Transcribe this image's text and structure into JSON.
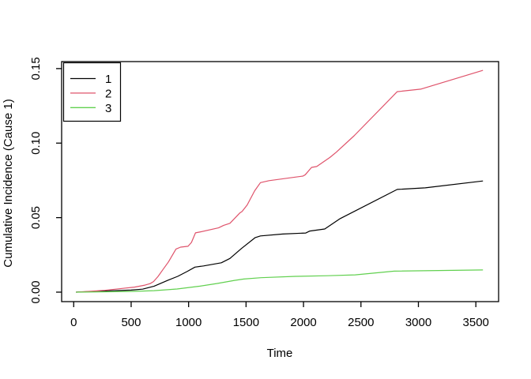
{
  "figure": {
    "background": "#ffffff",
    "axis_color": "#000000",
    "text_color": "#000000"
  },
  "chart_data": {
    "type": "line",
    "title": "",
    "xlabel": "Time",
    "ylabel": "Cumulative Incidence (Cause 1)",
    "xlim": [
      -105,
      3698
    ],
    "ylim": [
      -0.00636,
      0.1547
    ],
    "x_ticks": [
      0,
      500,
      1000,
      1500,
      2000,
      2500,
      3000,
      3500
    ],
    "x_tick_labels": [
      "0",
      "500",
      "1000",
      "1500",
      "2000",
      "2500",
      "3000",
      "3500"
    ],
    "y_ticks": [
      0,
      0.05,
      0.1,
      0.15
    ],
    "y_tick_labels": [
      "0.00",
      "0.05",
      "0.10",
      "0.15"
    ],
    "grid": false,
    "legend_position": "top-left",
    "series": [
      {
        "name": "1",
        "color": "#000000",
        "points": [
          [
            20,
            0
          ],
          [
            150,
            0.0004
          ],
          [
            300,
            0.0009
          ],
          [
            500,
            0.0014
          ],
          [
            600,
            0.002
          ],
          [
            700,
            0.004
          ],
          [
            820,
            0.008
          ],
          [
            905,
            0.0106
          ],
          [
            990,
            0.014
          ],
          [
            1055,
            0.0168
          ],
          [
            1130,
            0.0176
          ],
          [
            1285,
            0.0197
          ],
          [
            1360,
            0.0226
          ],
          [
            1460,
            0.0293
          ],
          [
            1580,
            0.0366
          ],
          [
            1625,
            0.0377
          ],
          [
            1820,
            0.039
          ],
          [
            2020,
            0.0397
          ],
          [
            2055,
            0.041
          ],
          [
            2185,
            0.0424
          ],
          [
            2320,
            0.0494
          ],
          [
            2816,
            0.0689
          ],
          [
            3060,
            0.07
          ],
          [
            3562,
            0.0746
          ]
        ]
      },
      {
        "name": "2",
        "color": "#DF536B",
        "points": [
          [
            20,
            0
          ],
          [
            150,
            0.0006
          ],
          [
            270,
            0.0012
          ],
          [
            390,
            0.0022
          ],
          [
            530,
            0.0034
          ],
          [
            620,
            0.0047
          ],
          [
            665,
            0.0057
          ],
          [
            695,
            0.0071
          ],
          [
            735,
            0.0106
          ],
          [
            775,
            0.015
          ],
          [
            825,
            0.0203
          ],
          [
            890,
            0.0289
          ],
          [
            930,
            0.0302
          ],
          [
            995,
            0.0308
          ],
          [
            1025,
            0.0334
          ],
          [
            1060,
            0.0398
          ],
          [
            1105,
            0.0405
          ],
          [
            1260,
            0.0431
          ],
          [
            1305,
            0.0448
          ],
          [
            1360,
            0.0462
          ],
          [
            1445,
            0.0531
          ],
          [
            1465,
            0.0541
          ],
          [
            1510,
            0.0585
          ],
          [
            1575,
            0.068
          ],
          [
            1625,
            0.0735
          ],
          [
            1700,
            0.0748
          ],
          [
            1995,
            0.0779
          ],
          [
            2015,
            0.0788
          ],
          [
            2070,
            0.0837
          ],
          [
            2115,
            0.0843
          ],
          [
            2230,
            0.0904
          ],
          [
            2285,
            0.0939
          ],
          [
            2440,
            0.1049
          ],
          [
            2816,
            0.1345
          ],
          [
            3020,
            0.1362
          ],
          [
            3562,
            0.1488
          ]
        ]
      },
      {
        "name": "3",
        "color": "#61D04F",
        "points": [
          [
            20,
            0
          ],
          [
            250,
            0.0002
          ],
          [
            500,
            0.0005
          ],
          [
            700,
            0.001
          ],
          [
            900,
            0.0021
          ],
          [
            1100,
            0.004
          ],
          [
            1250,
            0.0058
          ],
          [
            1400,
            0.0079
          ],
          [
            1480,
            0.0088
          ],
          [
            1630,
            0.0097
          ],
          [
            1930,
            0.0106
          ],
          [
            2210,
            0.011
          ],
          [
            2450,
            0.0116
          ],
          [
            2790,
            0.0141
          ],
          [
            3562,
            0.0149
          ]
        ]
      }
    ]
  }
}
